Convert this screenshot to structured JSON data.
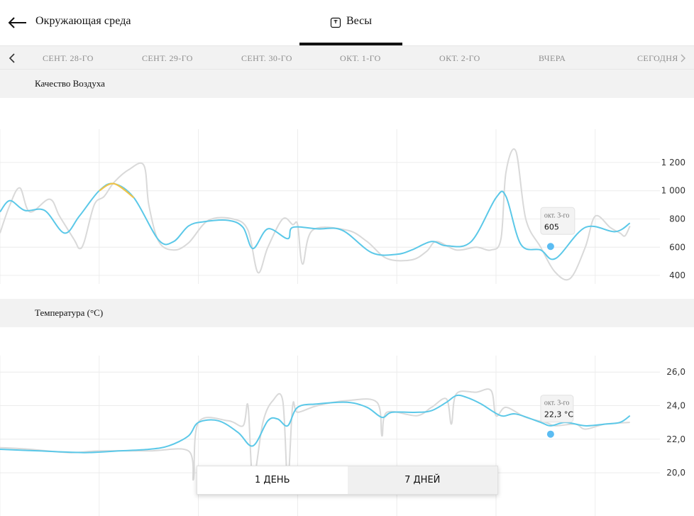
{
  "header": {
    "title": "Окружающая среда",
    "tab_label": "Весы",
    "back_icon": "back-arrow-icon",
    "tab_icon": "scale-icon"
  },
  "dates": {
    "items": [
      "СЕНТ. 28-ГО",
      "СЕНТ. 29-ГО",
      "СЕНТ. 30-ГО",
      "ОКТ. 1-ГО",
      "ОКТ. 2-ГО",
      "ВЧЕРА",
      "СЕГОДНЯ"
    ]
  },
  "air": {
    "title": "Качество Воздуха",
    "y_ticks": [
      "1 200",
      "1 000",
      "800",
      "600",
      "400"
    ],
    "tooltip_date": "окт. 3-го",
    "tooltip_value": "605"
  },
  "temp": {
    "title": "Температура (°C)",
    "y_ticks": [
      "26,0",
      "24,0",
      "22,0",
      "20,0"
    ],
    "tooltip_date": "окт. 3-го",
    "tooltip_value": "22,3 °C"
  },
  "range_toggle": {
    "day_label": "1 ДЕНЬ",
    "week_label": "7 ДНЕЙ",
    "active": "7 ДНЕЙ"
  },
  "colors": {
    "trend": "#5bc8e8",
    "raw": "#d9d9d9",
    "highlight": "#f0c44a",
    "marker": "#5bbcf2"
  },
  "chart_data": [
    {
      "type": "line",
      "title": "Качество Воздуха",
      "x": [
        "СЕНТ. 28-ГО",
        "СЕНТ. 29-ГО",
        "СЕНТ. 30-ГО",
        "ОКТ. 1-ГО",
        "ОКТ. 2-ГО",
        "ВЧЕРА",
        "СЕГОДНЯ"
      ],
      "ylim": [
        380,
        1260
      ],
      "yticks": [
        1200,
        1000,
        800,
        600,
        400
      ],
      "grid": true,
      "series": [
        {
          "values": [
            [
              0,
              850
            ],
            [
              0.1,
              930
            ],
            [
              0.25,
              860
            ],
            [
              0.45,
              860
            ],
            [
              0.65,
              700
            ],
            [
              0.8,
              820
            ],
            [
              1.0,
              1000
            ],
            [
              1.15,
              1050
            ],
            [
              1.35,
              950
            ],
            [
              1.6,
              650
            ],
            [
              1.75,
              640
            ],
            [
              1.9,
              750
            ],
            [
              2.05,
              780
            ],
            [
              2.3,
              790
            ],
            [
              2.45,
              740
            ],
            [
              2.55,
              590
            ],
            [
              2.7,
              730
            ],
            [
              2.9,
              660
            ],
            [
              2.95,
              740
            ],
            [
              3.2,
              730
            ],
            [
              3.45,
              720
            ],
            [
              3.75,
              560
            ],
            [
              4.0,
              550
            ],
            [
              4.15,
              580
            ],
            [
              4.35,
              640
            ],
            [
              4.5,
              610
            ],
            [
              4.75,
              640
            ],
            [
              5.0,
              950
            ],
            [
              5.1,
              960
            ],
            [
              5.25,
              620
            ],
            [
              5.45,
              580
            ],
            [
              5.6,
              520
            ],
            [
              5.9,
              740
            ],
            [
              6.2,
              710
            ],
            [
              6.35,
              770
            ]
          ]
        },
        {
          "values": [
            [
              0,
              700
            ],
            [
              0.1,
              900
            ],
            [
              0.2,
              1020
            ],
            [
              0.3,
              850
            ],
            [
              0.5,
              940
            ],
            [
              0.6,
              820
            ],
            [
              0.75,
              650
            ],
            [
              0.8,
              590
            ],
            [
              0.85,
              640
            ],
            [
              0.95,
              900
            ],
            [
              1.05,
              960
            ],
            [
              1.15,
              1060
            ],
            [
              1.3,
              1150
            ],
            [
              1.45,
              1180
            ],
            [
              1.5,
              900
            ],
            [
              1.6,
              640
            ],
            [
              1.75,
              580
            ],
            [
              1.9,
              630
            ],
            [
              2.1,
              790
            ],
            [
              2.35,
              800
            ],
            [
              2.5,
              720
            ],
            [
              2.6,
              420
            ],
            [
              2.7,
              600
            ],
            [
              2.85,
              800
            ],
            [
              2.95,
              760
            ],
            [
              3.0,
              760
            ],
            [
              3.05,
              480
            ],
            [
              3.15,
              720
            ],
            [
              3.5,
              720
            ],
            [
              3.7,
              640
            ],
            [
              3.9,
              520
            ],
            [
              4.15,
              510
            ],
            [
              4.3,
              570
            ],
            [
              4.4,
              640
            ],
            [
              4.6,
              580
            ],
            [
              4.8,
              600
            ],
            [
              4.95,
              580
            ],
            [
              5.05,
              660
            ],
            [
              5.1,
              1130
            ],
            [
              5.2,
              1280
            ],
            [
              5.3,
              800
            ],
            [
              5.45,
              600
            ],
            [
              5.6,
              420
            ],
            [
              5.75,
              380
            ],
            [
              5.9,
              600
            ],
            [
              6.0,
              820
            ],
            [
              6.15,
              740
            ],
            [
              6.25,
              700
            ],
            [
              6.3,
              680
            ],
            [
              6.35,
              750
            ]
          ]
        }
      ],
      "highlight": {
        "x_from": 1.05,
        "x_to": 1.3
      },
      "marker": {
        "x": 5.55,
        "y": 605,
        "label": "окт. 3-го",
        "value": "605"
      }
    },
    {
      "type": "line",
      "title": "Температура (°C)",
      "x": [
        "СЕНТ. 28-ГО",
        "СЕНТ. 29-ГО",
        "СЕНТ. 30-ГО",
        "ОКТ. 1-ГО",
        "ОКТ. 2-ГО",
        "ВЧЕРА",
        "СЕГОДНЯ"
      ],
      "ylim": [
        19.2,
        26.6
      ],
      "yticks": [
        26.0,
        24.0,
        22.0,
        20.0
      ],
      "grid": true,
      "series": [
        {
          "values": [
            [
              0,
              21.4
            ],
            [
              0.4,
              21.3
            ],
            [
              0.85,
              21.2
            ],
            [
              1.2,
              21.3
            ],
            [
              1.5,
              21.4
            ],
            [
              1.7,
              21.6
            ],
            [
              1.9,
              22.2
            ],
            [
              2.0,
              23.0
            ],
            [
              2.2,
              23.1
            ],
            [
              2.4,
              22.4
            ],
            [
              2.55,
              21.6
            ],
            [
              2.7,
              23.1
            ],
            [
              2.8,
              23.2
            ],
            [
              2.9,
              22.8
            ],
            [
              3.0,
              23.9
            ],
            [
              3.2,
              24.1
            ],
            [
              3.5,
              24.2
            ],
            [
              3.7,
              23.9
            ],
            [
              3.85,
              23.3
            ],
            [
              3.95,
              23.6
            ],
            [
              4.2,
              23.6
            ],
            [
              4.35,
              23.7
            ],
            [
              4.5,
              24.2
            ],
            [
              4.6,
              24.6
            ],
            [
              4.7,
              24.5
            ],
            [
              4.85,
              24.1
            ],
            [
              5.05,
              23.4
            ],
            [
              5.2,
              23.5
            ],
            [
              5.45,
              23.0
            ],
            [
              5.55,
              22.8
            ],
            [
              5.7,
              23.0
            ],
            [
              5.9,
              22.8
            ],
            [
              6.1,
              22.9
            ],
            [
              6.25,
              23.0
            ],
            [
              6.35,
              23.4
            ]
          ]
        },
        {
          "values": [
            [
              0,
              21.5
            ],
            [
              0.3,
              21.4
            ],
            [
              0.7,
              21.2
            ],
            [
              1.0,
              21.3
            ],
            [
              1.5,
              21.3
            ],
            [
              1.9,
              21.3
            ],
            [
              1.95,
              19.6
            ],
            [
              2.0,
              23.0
            ],
            [
              2.3,
              23.1
            ],
            [
              2.45,
              22.8
            ],
            [
              2.5,
              24.0
            ],
            [
              2.55,
              19.6
            ],
            [
              2.65,
              23.0
            ],
            [
              2.75,
              24.3
            ],
            [
              2.85,
              24.3
            ],
            [
              2.9,
              19.5
            ],
            [
              2.95,
              24.0
            ],
            [
              3.0,
              23.6
            ],
            [
              3.2,
              24.0
            ],
            [
              3.5,
              24.3
            ],
            [
              3.8,
              24.2
            ],
            [
              3.85,
              22.2
            ],
            [
              3.9,
              23.6
            ],
            [
              4.2,
              23.4
            ],
            [
              4.35,
              23.9
            ],
            [
              4.5,
              24.4
            ],
            [
              4.55,
              22.9
            ],
            [
              4.6,
              24.7
            ],
            [
              4.8,
              24.8
            ],
            [
              4.95,
              24.9
            ],
            [
              5.0,
              23.4
            ],
            [
              5.1,
              23.9
            ],
            [
              5.3,
              23.3
            ],
            [
              5.5,
              23.0
            ],
            [
              5.6,
              22.8
            ],
            [
              5.8,
              22.9
            ],
            [
              5.9,
              22.6
            ],
            [
              6.1,
              22.9
            ],
            [
              6.35,
              23.0
            ]
          ]
        }
      ],
      "marker": {
        "x": 5.55,
        "y": 22.3,
        "label": "окт. 3-го",
        "value": "22,3 °C"
      }
    }
  ]
}
